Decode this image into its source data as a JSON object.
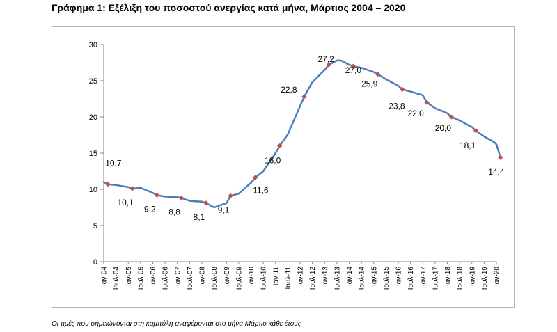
{
  "title": "Γράφημα 1: Εξέλιξη του ποσοστού ανεργίας κατά μήνα, Μάρτιος 2004 – 2020",
  "footnote": "Οι τιμές που σημειώνονται στη καμπύλη αναφέρονται στο μήνα Μάρτιο κάθε έτους",
  "colors": {
    "line": "#4a7ebb",
    "marker": "#c0504d",
    "axis": "#868686",
    "frame": "#b5b5b5"
  },
  "chart_data": {
    "type": "line",
    "title": "",
    "xlabel": "",
    "ylabel": "",
    "ylim": [
      0,
      30
    ],
    "yticks": [
      0,
      5,
      10,
      15,
      20,
      25,
      30
    ],
    "grid": false,
    "legend": "none",
    "x_ticks": [
      "Ιαν-04",
      "Ιουλ-04",
      "Ιαν-05",
      "Ιουλ-05",
      "Ιαν-06",
      "Ιουλ-06",
      "Ιαν-07",
      "Ιουλ-07",
      "Ιαν-08",
      "Ιουλ-08",
      "Ιαν-09",
      "Ιουλ-09",
      "Ιαν-10",
      "Ιουλ-10",
      "Ιαν-11",
      "Ιουλ-11",
      "Ιαν-12",
      "Ιουλ-12",
      "Ιαν-13",
      "Ιουλ-13",
      "Ιαν-14",
      "Ιουλ-14",
      "Ιαν-15",
      "Ιουλ-15",
      "Ιαν-16",
      "Ιουλ-16",
      "Ιαν-17",
      "Ιουλ-17",
      "Ιαν-18",
      "Ιουλ-18",
      "Ιαν-19",
      "Ιουλ-19",
      "Ιαν-20"
    ],
    "series": [
      {
        "x": [
          "2004-01",
          "2004-03",
          "2004-07",
          "2005-01",
          "2005-03",
          "2005-07",
          "2006-01",
          "2006-03",
          "2006-07",
          "2007-01",
          "2007-03",
          "2007-07",
          "2008-01",
          "2008-03",
          "2008-07",
          "2009-01",
          "2009-03",
          "2009-07",
          "2010-01",
          "2010-03",
          "2010-07",
          "2011-01",
          "2011-03",
          "2011-07",
          "2012-01",
          "2012-03",
          "2012-07",
          "2013-01",
          "2013-03",
          "2013-07",
          "2013-09",
          "2014-01",
          "2014-03",
          "2014-07",
          "2015-01",
          "2015-03",
          "2015-07",
          "2016-01",
          "2016-03",
          "2016-07",
          "2017-01",
          "2017-03",
          "2017-07",
          "2018-01",
          "2018-03",
          "2018-07",
          "2019-01",
          "2019-03",
          "2019-07",
          "2019-12",
          "2020-01",
          "2020-03"
        ],
        "values": [
          11.0,
          10.7,
          10.6,
          10.3,
          10.1,
          10.2,
          9.5,
          9.2,
          9.0,
          8.9,
          8.8,
          8.4,
          8.3,
          8.1,
          7.5,
          8.1,
          9.1,
          9.4,
          10.9,
          11.6,
          12.5,
          15.0,
          16.0,
          17.6,
          21.5,
          22.8,
          24.8,
          26.5,
          27.2,
          27.8,
          27.8,
          27.2,
          27.0,
          26.8,
          26.2,
          25.9,
          25.2,
          24.3,
          23.8,
          23.5,
          23.0,
          22.0,
          21.2,
          20.5,
          20.0,
          19.5,
          18.6,
          18.1,
          17.3,
          16.5,
          16.2,
          14.4
        ]
      }
    ],
    "markers": [
      {
        "x": "2004-03",
        "value": 10.7,
        "label": "10,7"
      },
      {
        "x": "2005-03",
        "value": 10.1,
        "label": "10,1"
      },
      {
        "x": "2006-03",
        "value": 9.2,
        "label": "9,2"
      },
      {
        "x": "2007-03",
        "value": 8.8,
        "label": "8,8"
      },
      {
        "x": "2008-03",
        "value": 8.1,
        "label": "8,1"
      },
      {
        "x": "2009-03",
        "value": 9.1,
        "label": "9,1"
      },
      {
        "x": "2010-03",
        "value": 11.6,
        "label": "11,6"
      },
      {
        "x": "2011-03",
        "value": 16.0,
        "label": "16,0"
      },
      {
        "x": "2012-03",
        "value": 22.8,
        "label": "22,8"
      },
      {
        "x": "2013-03",
        "value": 27.2,
        "label": "27,2"
      },
      {
        "x": "2014-03",
        "value": 27.0,
        "label": "27,0"
      },
      {
        "x": "2015-03",
        "value": 25.9,
        "label": "25,9"
      },
      {
        "x": "2016-03",
        "value": 23.8,
        "label": "23,8"
      },
      {
        "x": "2017-03",
        "value": 22.0,
        "label": "22,0"
      },
      {
        "x": "2018-03",
        "value": 20.0,
        "label": "20,0"
      },
      {
        "x": "2019-03",
        "value": 18.1,
        "label": "18,1"
      },
      {
        "x": "2020-03",
        "value": 14.4,
        "label": "14,4"
      }
    ]
  }
}
